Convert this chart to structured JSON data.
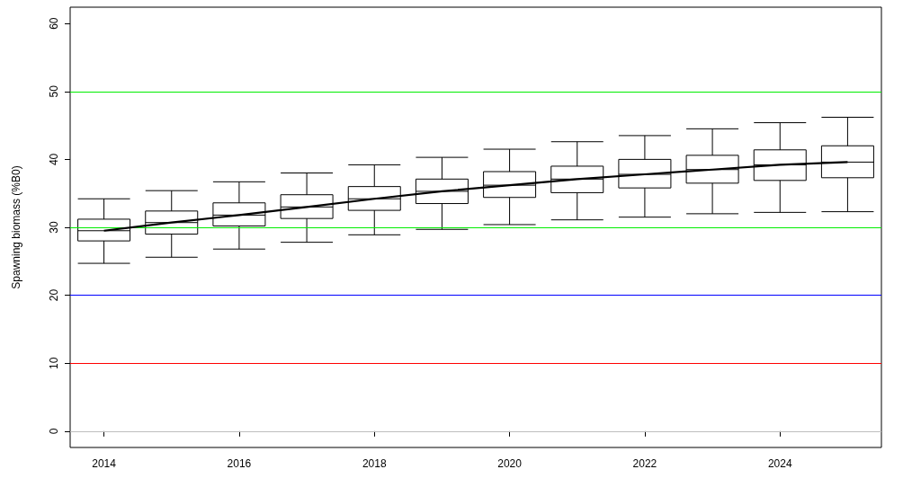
{
  "chart_data": {
    "type": "box",
    "ylabel": "Spawning biomass (%B0)",
    "categories": [
      "2014",
      null,
      "2016",
      null,
      "2018",
      null,
      "2020",
      null,
      "2022",
      null,
      "2024",
      null
    ],
    "ylim": [
      -2.4,
      62.4
    ],
    "yticks": [
      0,
      10,
      20,
      30,
      40,
      50,
      60
    ],
    "grid": false,
    "marker": "none",
    "series": [
      {
        "color": "#000000",
        "boxes": [
          {
            "low": 24.7,
            "q1": 28.0,
            "median": 29.5,
            "q3": 31.2,
            "high": 34.2
          },
          {
            "low": 25.6,
            "q1": 29.0,
            "median": 30.7,
            "q3": 32.4,
            "high": 35.4
          },
          {
            "low": 26.8,
            "q1": 30.2,
            "median": 31.8,
            "q3": 33.6,
            "high": 36.7
          },
          {
            "low": 27.8,
            "q1": 31.3,
            "median": 33.0,
            "q3": 34.8,
            "high": 38.0
          },
          {
            "low": 28.9,
            "q1": 32.5,
            "median": 34.2,
            "q3": 36.0,
            "high": 39.2
          },
          {
            "low": 29.7,
            "q1": 33.5,
            "median": 35.3,
            "q3": 37.1,
            "high": 40.3
          },
          {
            "low": 30.4,
            "q1": 34.4,
            "median": 36.2,
            "q3": 38.2,
            "high": 41.5
          },
          {
            "low": 31.1,
            "q1": 35.1,
            "median": 37.1,
            "q3": 39.0,
            "high": 42.6
          },
          {
            "low": 31.5,
            "q1": 35.8,
            "median": 37.8,
            "q3": 40.0,
            "high": 43.5
          },
          {
            "low": 32.0,
            "q1": 36.5,
            "median": 38.5,
            "q3": 40.6,
            "high": 44.5
          },
          {
            "low": 32.2,
            "q1": 36.9,
            "median": 39.2,
            "q3": 41.4,
            "high": 45.4
          },
          {
            "low": 32.3,
            "q1": 37.3,
            "median": 39.6,
            "q3": 42.0,
            "high": 46.2
          }
        ]
      },
      {
        "type": "line",
        "color": "#000000",
        "values": [
          29.5,
          30.7,
          31.8,
          33.0,
          34.2,
          35.3,
          36.2,
          37.1,
          37.8,
          38.5,
          39.2,
          39.6
        ]
      }
    ],
    "ref_lines": [
      {
        "axis": "y",
        "value": 50,
        "color": "#00ee00"
      },
      {
        "axis": "y",
        "value": 30,
        "color": "#00ee00"
      },
      {
        "axis": "y",
        "value": 20,
        "color": "#0000ff"
      },
      {
        "axis": "y",
        "value": 10,
        "color": "#ff0000"
      },
      {
        "axis": "y",
        "value": 0,
        "color": "#bebebe"
      }
    ]
  }
}
